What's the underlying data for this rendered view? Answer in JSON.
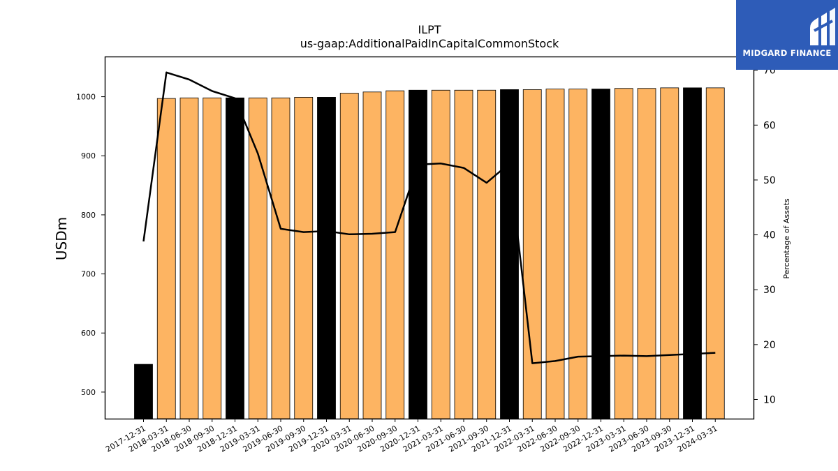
{
  "brand": {
    "name": "MIDGARD FINANCE",
    "color": "#2e5cb8"
  },
  "chart_data": {
    "type": "bar",
    "title": "ILPT",
    "subtitle": "us-gaap:AdditionalPaidInCapitalCommonStock",
    "ylabel": "USDm",
    "y2label": "Percentage of Assets",
    "ylim": [
      455,
      1068
    ],
    "y2lim": [
      6.5,
      72.5
    ],
    "yticks": [
      500,
      600,
      700,
      800,
      900,
      1000
    ],
    "y2ticks": [
      10,
      20,
      30,
      40,
      50,
      60,
      70
    ],
    "grid": false,
    "categories": [
      "2017-12-31",
      "2018-03-31",
      "2018-06-30",
      "2018-09-30",
      "2018-12-31",
      "2019-03-31",
      "2019-06-30",
      "2019-09-30",
      "2019-12-31",
      "2020-03-31",
      "2020-06-30",
      "2020-09-30",
      "2020-12-31",
      "2021-03-31",
      "2021-06-30",
      "2021-09-30",
      "2021-12-31",
      "2022-03-31",
      "2022-06-30",
      "2022-09-30",
      "2022-12-31",
      "2023-03-31",
      "2023-06-30",
      "2023-09-30",
      "2023-12-31",
      "2024-03-31"
    ],
    "series": [
      {
        "kind": "bar",
        "axis": "left",
        "values": [
          547,
          997,
          998,
          998,
          998,
          998,
          998,
          999,
          999,
          1006,
          1008,
          1010,
          1011,
          1011,
          1011,
          1011,
          1012,
          1012,
          1013,
          1013,
          1013,
          1014,
          1014,
          1015,
          1015,
          1015
        ],
        "colors": [
          "#000000",
          "#fdb462",
          "#fdb462",
          "#fdb462",
          "#000000",
          "#fdb462",
          "#fdb462",
          "#fdb462",
          "#000000",
          "#fdb462",
          "#fdb462",
          "#fdb462",
          "#000000",
          "#fdb462",
          "#fdb462",
          "#fdb462",
          "#000000",
          "#fdb462",
          "#fdb462",
          "#fdb462",
          "#000000",
          "#fdb462",
          "#fdb462",
          "#fdb462",
          "#000000",
          "#fdb462"
        ]
      },
      {
        "kind": "line",
        "axis": "right",
        "color": "#000000",
        "values": [
          38.8,
          69.6,
          68.3,
          66.2,
          64.9,
          54.8,
          41.1,
          40.5,
          40.7,
          40.1,
          40.2,
          40.5,
          52.8,
          53.0,
          52.2,
          49.5,
          53.0,
          16.6,
          17.0,
          17.8,
          17.9,
          18.0,
          17.9,
          18.1,
          18.3,
          18.5
        ]
      }
    ]
  }
}
